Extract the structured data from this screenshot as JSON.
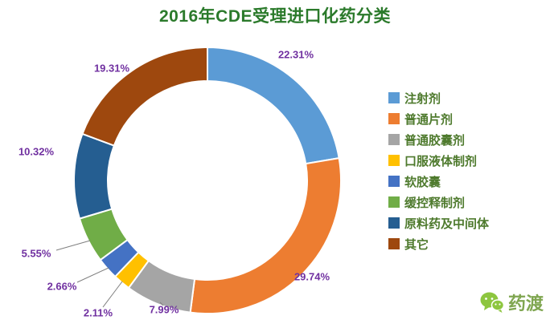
{
  "title": "2016年CDE受理进口化药分类",
  "chart_data": {
    "type": "pie",
    "subtype": "donut",
    "title": "2016年CDE受理进口化药分类",
    "legend_position": "right",
    "start_angle_deg": 0,
    "direction": "clockwise",
    "label_color": "#7030A0",
    "slices": [
      {
        "label": "注射剂",
        "value": 22.31,
        "display": "22.31%",
        "color": "#5B9BD5"
      },
      {
        "label": "普通片剂",
        "value": 29.74,
        "display": "29.74%",
        "color": "#ED7D31"
      },
      {
        "label": "普通胶囊剂",
        "value": 7.99,
        "display": "7.99%",
        "color": "#A5A5A5"
      },
      {
        "label": "口服液体制剂",
        "value": 2.11,
        "display": "2.11%",
        "color": "#FFC000"
      },
      {
        "label": "软胶囊",
        "value": 2.66,
        "display": "2.66%",
        "color": "#4472C4"
      },
      {
        "label": "缓控释制剂",
        "value": 5.55,
        "display": "5.55%",
        "color": "#70AD47"
      },
      {
        "label": "原料药及中间体",
        "value": 10.32,
        "display": "10.32%",
        "color": "#255E91"
      },
      {
        "label": "其它",
        "value": 19.31,
        "display": "19.31%",
        "color": "#9E480E"
      }
    ]
  },
  "branding": {
    "logo_text": "药渡"
  },
  "colors": {
    "title": "#2B7A2B",
    "legend_text": "#4E7A2D",
    "percent_label": "#7030A0",
    "logo_green": "#8DC63F",
    "logo_text": "#7FA650",
    "leader_line": "#7F7F7F"
  }
}
